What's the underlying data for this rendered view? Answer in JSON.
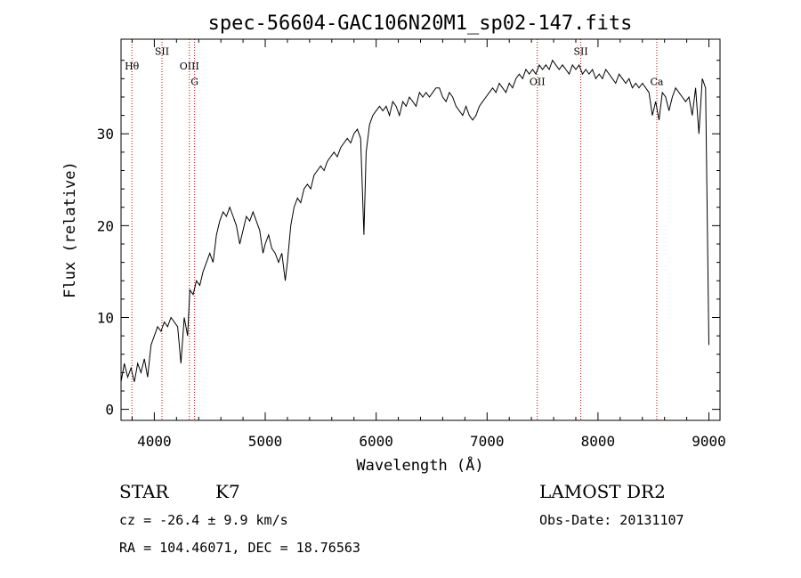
{
  "chart_data": {
    "type": "line",
    "title": "spec-56604-GAC106N20M1_sp02-147.fits",
    "xlabel": "Wavelength (Å)",
    "ylabel": "Flux (relative)",
    "xlim": [
      3700,
      9100
    ],
    "ylim": [
      -1.2,
      40.3
    ],
    "x_ticks": [
      4000,
      5000,
      6000,
      7000,
      8000,
      9000
    ],
    "y_ticks": [
      0,
      10,
      20,
      30
    ],
    "grid": false,
    "series": [
      {
        "points": [
          [
            3700,
            3.0
          ],
          [
            3730,
            5.0
          ],
          [
            3760,
            3.5
          ],
          [
            3790,
            4.5
          ],
          [
            3820,
            3.0
          ],
          [
            3850,
            5.0
          ],
          [
            3880,
            4.0
          ],
          [
            3910,
            5.5
          ],
          [
            3940,
            3.5
          ],
          [
            3970,
            7.0
          ],
          [
            4000,
            8.0
          ],
          [
            4030,
            9.0
          ],
          [
            4060,
            8.5
          ],
          [
            4090,
            9.5
          ],
          [
            4120,
            9.0
          ],
          [
            4150,
            10.0
          ],
          [
            4180,
            9.5
          ],
          [
            4210,
            9.0
          ],
          [
            4240,
            5.0
          ],
          [
            4270,
            10.0
          ],
          [
            4300,
            8.0
          ],
          [
            4320,
            13.0
          ],
          [
            4350,
            12.5
          ],
          [
            4380,
            14.0
          ],
          [
            4410,
            13.5
          ],
          [
            4440,
            15.0
          ],
          [
            4470,
            16.0
          ],
          [
            4500,
            17.0
          ],
          [
            4530,
            16.0
          ],
          [
            4560,
            19.0
          ],
          [
            4590,
            20.5
          ],
          [
            4620,
            21.5
          ],
          [
            4650,
            21.0
          ],
          [
            4680,
            22.0
          ],
          [
            4710,
            21.0
          ],
          [
            4740,
            20.0
          ],
          [
            4770,
            18.0
          ],
          [
            4800,
            19.5
          ],
          [
            4830,
            21.0
          ],
          [
            4860,
            20.5
          ],
          [
            4890,
            21.5
          ],
          [
            4920,
            20.5
          ],
          [
            4950,
            19.5
          ],
          [
            4980,
            17.0
          ],
          [
            5000,
            18.0
          ],
          [
            5030,
            19.0
          ],
          [
            5060,
            17.5
          ],
          [
            5090,
            17.0
          ],
          [
            5120,
            16.0
          ],
          [
            5150,
            17.0
          ],
          [
            5180,
            14.0
          ],
          [
            5200,
            16.0
          ],
          [
            5230,
            20.0
          ],
          [
            5260,
            22.0
          ],
          [
            5290,
            23.0
          ],
          [
            5320,
            22.5
          ],
          [
            5350,
            24.0
          ],
          [
            5380,
            24.5
          ],
          [
            5410,
            24.0
          ],
          [
            5440,
            25.5
          ],
          [
            5470,
            26.0
          ],
          [
            5500,
            26.5
          ],
          [
            5530,
            26.0
          ],
          [
            5560,
            27.0
          ],
          [
            5590,
            27.5
          ],
          [
            5620,
            28.0
          ],
          [
            5650,
            27.5
          ],
          [
            5680,
            28.5
          ],
          [
            5710,
            29.0
          ],
          [
            5740,
            29.5
          ],
          [
            5770,
            29.0
          ],
          [
            5800,
            30.0
          ],
          [
            5830,
            30.5
          ],
          [
            5860,
            29.5
          ],
          [
            5890,
            19.0
          ],
          [
            5910,
            28.0
          ],
          [
            5940,
            31.0
          ],
          [
            5970,
            32.0
          ],
          [
            6000,
            32.5
          ],
          [
            6030,
            33.0
          ],
          [
            6060,
            32.5
          ],
          [
            6090,
            33.0
          ],
          [
            6120,
            32.0
          ],
          [
            6150,
            33.5
          ],
          [
            6180,
            33.0
          ],
          [
            6210,
            32.0
          ],
          [
            6240,
            33.5
          ],
          [
            6270,
            33.0
          ],
          [
            6300,
            34.0
          ],
          [
            6330,
            33.5
          ],
          [
            6360,
            33.0
          ],
          [
            6390,
            34.5
          ],
          [
            6420,
            34.0
          ],
          [
            6450,
            34.5
          ],
          [
            6480,
            34.0
          ],
          [
            6510,
            34.5
          ],
          [
            6540,
            35.0
          ],
          [
            6570,
            35.0
          ],
          [
            6600,
            34.0
          ],
          [
            6630,
            33.5
          ],
          [
            6660,
            34.5
          ],
          [
            6690,
            34.0
          ],
          [
            6720,
            33.0
          ],
          [
            6750,
            32.5
          ],
          [
            6780,
            32.0
          ],
          [
            6810,
            33.0
          ],
          [
            6840,
            32.0
          ],
          [
            6870,
            31.5
          ],
          [
            6900,
            32.0
          ],
          [
            6930,
            33.0
          ],
          [
            6960,
            33.5
          ],
          [
            6990,
            34.0
          ],
          [
            7020,
            34.5
          ],
          [
            7050,
            35.0
          ],
          [
            7080,
            34.5
          ],
          [
            7110,
            35.5
          ],
          [
            7140,
            35.0
          ],
          [
            7170,
            34.5
          ],
          [
            7200,
            35.5
          ],
          [
            7230,
            35.0
          ],
          [
            7260,
            36.0
          ],
          [
            7290,
            36.5
          ],
          [
            7320,
            36.0
          ],
          [
            7350,
            37.0
          ],
          [
            7380,
            36.5
          ],
          [
            7410,
            37.0
          ],
          [
            7440,
            36.5
          ],
          [
            7470,
            37.5
          ],
          [
            7500,
            37.0
          ],
          [
            7530,
            37.5
          ],
          [
            7560,
            37.0
          ],
          [
            7590,
            38.0
          ],
          [
            7620,
            37.5
          ],
          [
            7650,
            37.0
          ],
          [
            7680,
            37.5
          ],
          [
            7710,
            37.0
          ],
          [
            7740,
            36.5
          ],
          [
            7770,
            37.5
          ],
          [
            7800,
            37.0
          ],
          [
            7830,
            37.5
          ],
          [
            7860,
            36.5
          ],
          [
            7890,
            37.0
          ],
          [
            7920,
            36.5
          ],
          [
            7950,
            37.0
          ],
          [
            7980,
            36.0
          ],
          [
            8010,
            36.5
          ],
          [
            8040,
            36.0
          ],
          [
            8070,
            37.0
          ],
          [
            8100,
            36.5
          ],
          [
            8130,
            36.0
          ],
          [
            8160,
            35.5
          ],
          [
            8190,
            36.5
          ],
          [
            8220,
            36.0
          ],
          [
            8250,
            35.5
          ],
          [
            8280,
            36.0
          ],
          [
            8310,
            35.0
          ],
          [
            8340,
            35.5
          ],
          [
            8370,
            35.0
          ],
          [
            8400,
            35.5
          ],
          [
            8430,
            35.0
          ],
          [
            8460,
            34.5
          ],
          [
            8490,
            32.0
          ],
          [
            8520,
            33.5
          ],
          [
            8550,
            31.5
          ],
          [
            8580,
            34.5
          ],
          [
            8610,
            34.0
          ],
          [
            8640,
            32.5
          ],
          [
            8670,
            34.0
          ],
          [
            8700,
            35.0
          ],
          [
            8730,
            34.5
          ],
          [
            8760,
            34.0
          ],
          [
            8790,
            33.5
          ],
          [
            8820,
            34.0
          ],
          [
            8850,
            32.0
          ],
          [
            8880,
            35.0
          ],
          [
            8910,
            30.0
          ],
          [
            8940,
            36.0
          ],
          [
            8970,
            35.0
          ],
          [
            9000,
            7.0
          ]
        ]
      }
    ],
    "line_markers": [
      {
        "label": "Hθ",
        "wavelength": 3798,
        "label_flux": 37.0
      },
      {
        "label": "SII",
        "wavelength": 4069,
        "label_flux": 38.6
      },
      {
        "label": "OIII",
        "wavelength": 4316,
        "label_flux": 37.0
      },
      {
        "label": "G",
        "wavelength": 4363,
        "label_flux": 35.3
      },
      {
        "label": "OII",
        "wavelength": 7453,
        "label_flux": 35.3
      },
      {
        "label": "SII",
        "wavelength": 7845,
        "label_flux": 38.6
      },
      {
        "label": "Ca",
        "wavelength": 8530,
        "label_flux": 35.3
      }
    ],
    "colors": {
      "spectrum": "#000000",
      "line_marker": "#c00000",
      "axes": "#000000"
    }
  },
  "info": {
    "object_class": "STAR",
    "subclass": "K7",
    "survey": "LAMOST DR2",
    "cz": "cz = -26.4 ± 9.9 km/s",
    "obs_date": "Obs-Date: 20131107",
    "coords": "RA = 104.46071, DEC =  18.76563"
  }
}
